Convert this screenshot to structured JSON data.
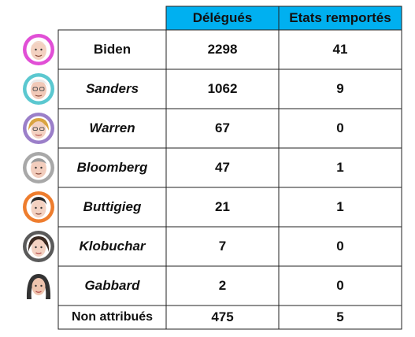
{
  "header": {
    "delegates_label": "Délégués",
    "states_label": "Etats remportés"
  },
  "rows": [
    {
      "name": "Biden",
      "italic": false,
      "delegates": "2298",
      "states": "41",
      "avatar": "biden-avatar-icon",
      "ring_color": "#e14fd6"
    },
    {
      "name": "Sanders",
      "italic": true,
      "delegates": "1062",
      "states": "9",
      "avatar": "sanders-avatar-icon",
      "ring_color": "#5bc8d0"
    },
    {
      "name": "Warren",
      "italic": true,
      "delegates": "67",
      "states": "0",
      "avatar": "warren-avatar-icon",
      "ring_color": "#9b7fc9"
    },
    {
      "name": "Bloomberg",
      "italic": true,
      "delegates": "47",
      "states": "1",
      "avatar": "bloomberg-avatar-icon",
      "ring_color": "#a8a8a8"
    },
    {
      "name": "Buttigieg",
      "italic": true,
      "delegates": "21",
      "states": "1",
      "avatar": "buttigieg-avatar-icon",
      "ring_color": "#ee7d2e"
    },
    {
      "name": "Klobuchar",
      "italic": true,
      "delegates": "7",
      "states": "0",
      "avatar": "klobuchar-avatar-icon",
      "ring_color": "#5a5a5a"
    },
    {
      "name": "Gabbard",
      "italic": true,
      "delegates": "2",
      "states": "0",
      "avatar": "gabbard-avatar-icon",
      "ring_color": "#ffffff"
    },
    {
      "name": "Non attribués",
      "italic": false,
      "delegates": "475",
      "states": "5",
      "avatar": null,
      "ring_color": null
    }
  ]
}
